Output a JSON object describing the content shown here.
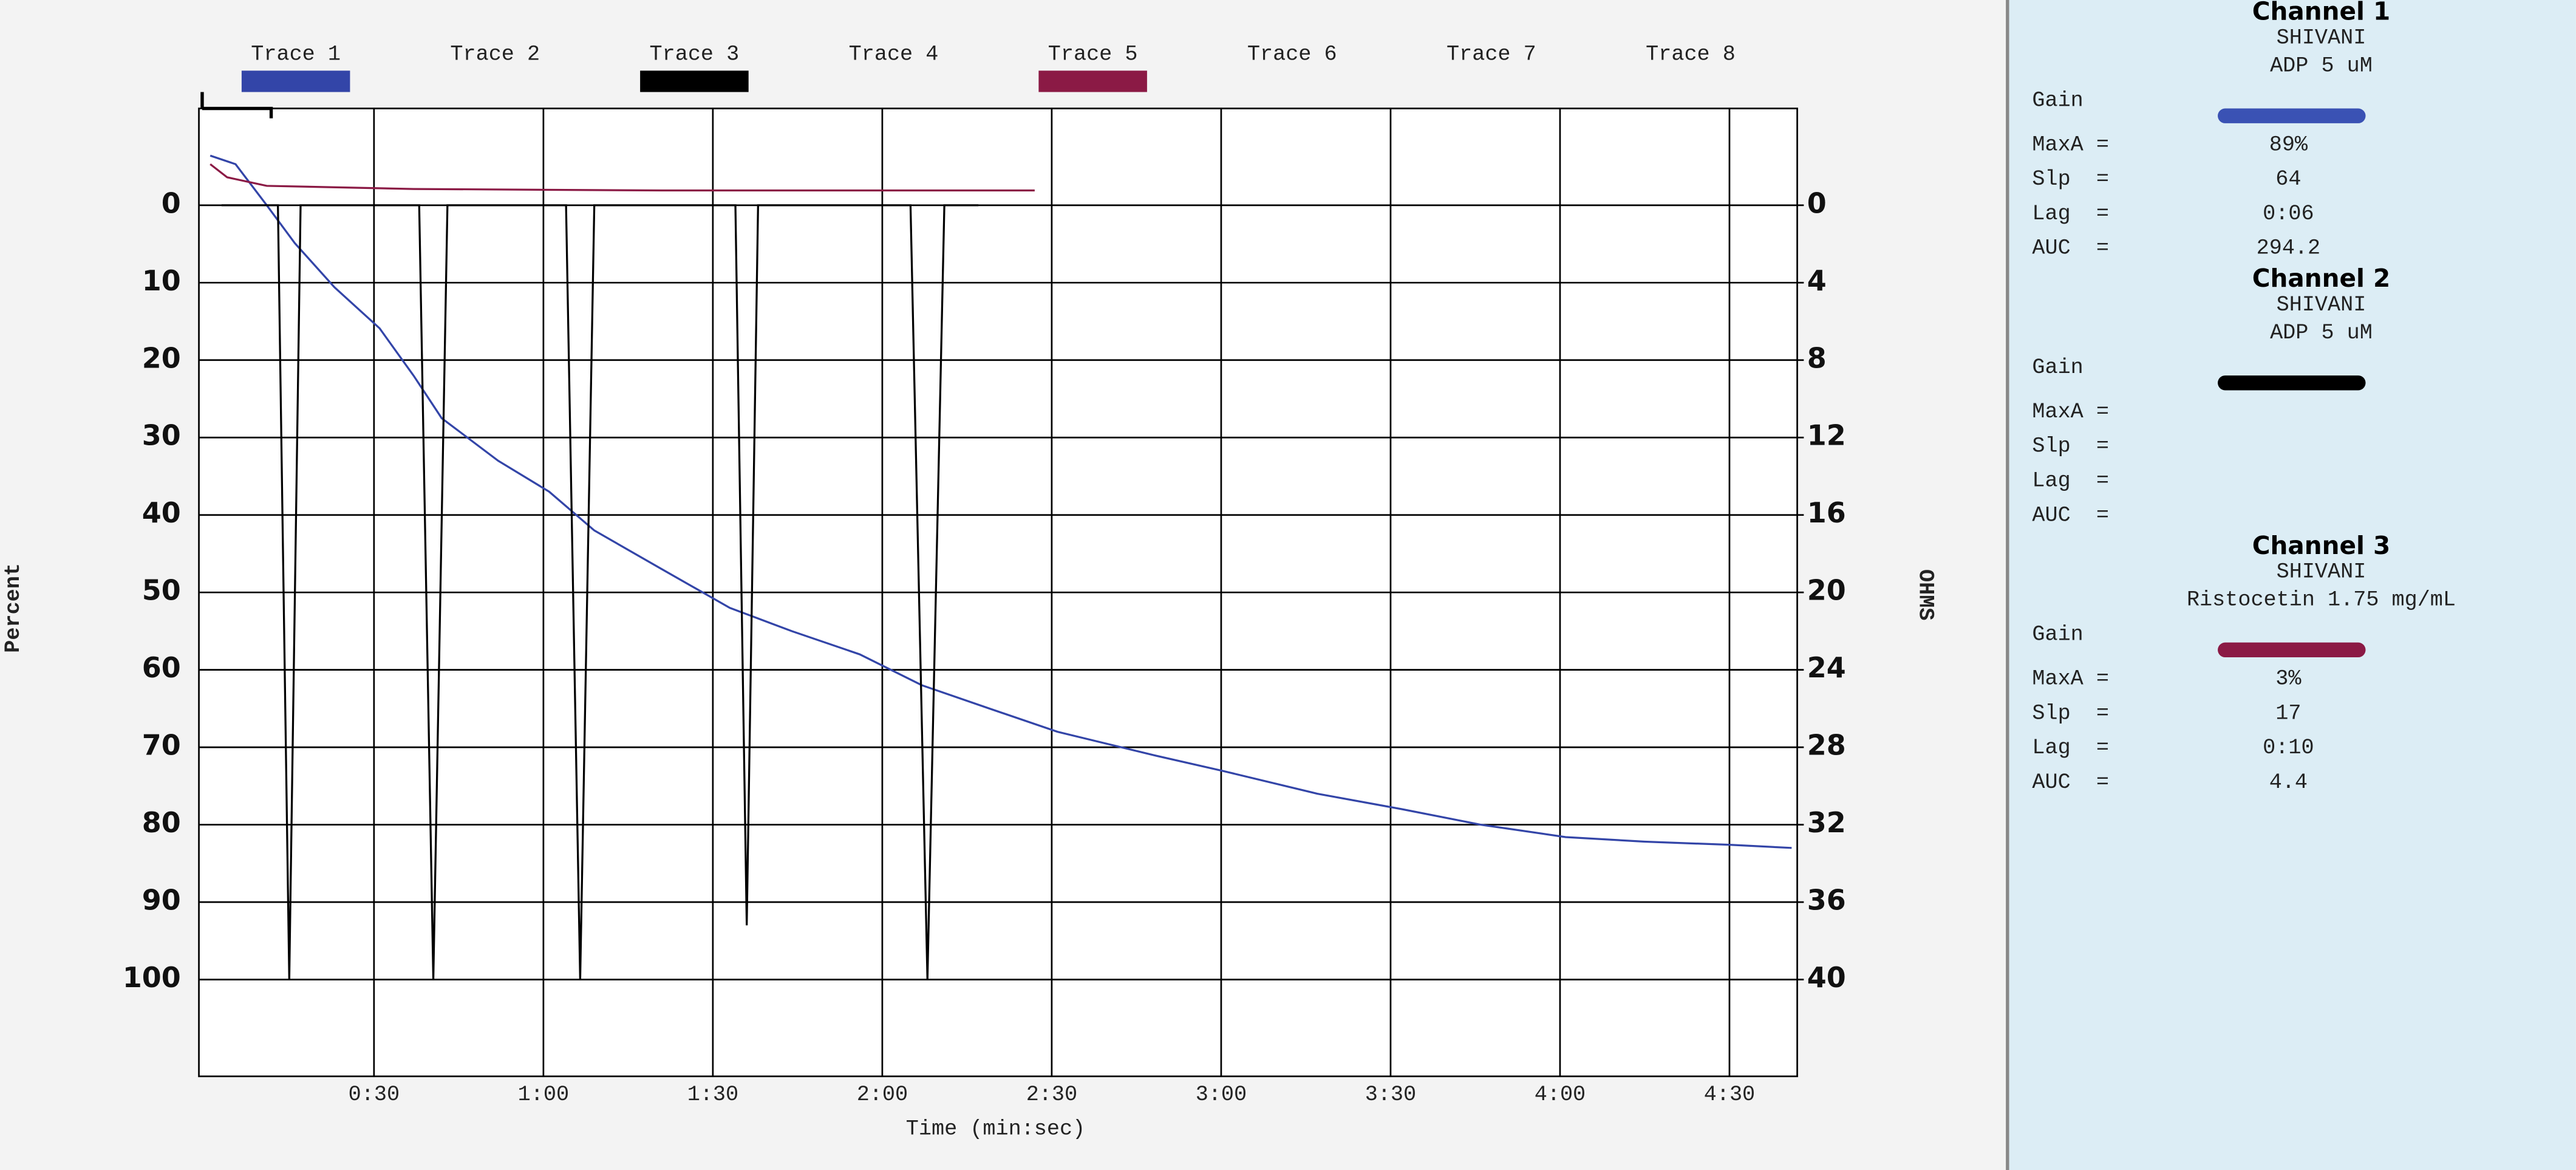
{
  "chart_data": {
    "type": "line",
    "y_label": "Percent",
    "y2_label": "OHMS",
    "x_label": "Time (min:sec)",
    "xlim": [
      -1,
      282
    ],
    "xticks": [
      {
        "value": 30,
        "label": "0:30"
      },
      {
        "value": 60,
        "label": "1:00"
      },
      {
        "value": 90,
        "label": "1:30"
      },
      {
        "value": 120,
        "label": "2:00"
      },
      {
        "value": 150,
        "label": "2:30"
      },
      {
        "value": 180,
        "label": "3:00"
      },
      {
        "value": 210,
        "label": "3:30"
      },
      {
        "value": 240,
        "label": "4:00"
      },
      {
        "value": 270,
        "label": "4:30"
      }
    ],
    "ylim": [
      112.5,
      -12.5
    ],
    "yticks": [
      0,
      10,
      20,
      30,
      40,
      50,
      60,
      70,
      80,
      90,
      100
    ],
    "y2lim": [
      45,
      -5
    ],
    "y2ticks": [
      0,
      4,
      8,
      12,
      16,
      20,
      24,
      28,
      32,
      36,
      40
    ],
    "grid": true,
    "series": [
      {
        "name": "Trace 1",
        "color": "#3345a8",
        "x": [
          1,
          5.5,
          11,
          16,
          23,
          31,
          37,
          42,
          52,
          61,
          69,
          81,
          93,
          104,
          116,
          127,
          139,
          151,
          168,
          180,
          197,
          212,
          226,
          241,
          255,
          270,
          281
        ],
        "values": [
          -6.4,
          -5.3,
          0,
          4.9,
          10.6,
          15.9,
          22,
          27.5,
          33,
          37,
          42,
          47,
          52,
          55,
          58,
          62,
          65,
          68,
          71,
          73,
          76,
          78,
          80,
          81.6,
          82.2,
          82.6,
          83
        ]
      },
      {
        "name": "Trace 2",
        "color": null,
        "x": [],
        "values": []
      },
      {
        "name": "Trace 3",
        "color": "#000000",
        "x": [
          3,
          13,
          15,
          17,
          38,
          40.5,
          43,
          64,
          66.5,
          69,
          94,
          96,
          98,
          125,
          128,
          131,
          137
        ],
        "values": [
          0,
          0,
          100,
          0,
          0,
          100,
          0,
          0,
          100,
          0,
          0,
          93,
          0,
          0,
          100,
          0,
          0
        ]
      },
      {
        "name": "Trace 4",
        "color": null,
        "x": [],
        "values": []
      },
      {
        "name": "Trace 5",
        "color": "#8b1a45",
        "x": [
          1,
          4,
          11,
          37,
          81,
          110,
          147
        ],
        "values": [
          -5.3,
          -3.6,
          -2.5,
          -2.1,
          -1.9,
          -1.9,
          -1.9
        ]
      },
      {
        "name": "Trace 6",
        "color": null,
        "x": [],
        "values": []
      },
      {
        "name": "Trace 7",
        "color": null,
        "x": [],
        "values": []
      },
      {
        "name": "Trace 8",
        "color": null,
        "x": [],
        "values": []
      }
    ]
  },
  "panel": {
    "channels": [
      {
        "title": "Channel 1",
        "name": "SHIVANI",
        "agent": "ADP 5 uM",
        "gain": "Gain",
        "color": "#3a52b4",
        "stats": [
          {
            "label": "MaxA =",
            "value": "89%"
          },
          {
            "label": "Slp  =",
            "value": "64"
          },
          {
            "label": "Lag  =",
            "value": "0:06"
          },
          {
            "label": "AUC  =",
            "value": "294.2"
          }
        ]
      },
      {
        "title": "Channel 2",
        "name": "SHIVANI",
        "agent": "ADP 5 uM",
        "gain": "Gain",
        "color": "#000000",
        "stats": [
          {
            "label": "MaxA ="
          },
          {
            "label": "Slp  ="
          },
          {
            "label": "Lag  ="
          },
          {
            "label": "AUC  ="
          }
        ]
      },
      {
        "title": "Channel 3",
        "name": "SHIVANI",
        "agent": "Ristocetin 1.75 mg/mL",
        "gain": "Gain",
        "color": "#8b1a45",
        "stats": [
          {
            "label": "MaxA =",
            "value": "3%"
          },
          {
            "label": "Slp  =",
            "value": "17"
          },
          {
            "label": "Lag  =",
            "value": "0:10"
          },
          {
            "label": "AUC  =",
            "value": "4.4"
          }
        ]
      }
    ]
  }
}
